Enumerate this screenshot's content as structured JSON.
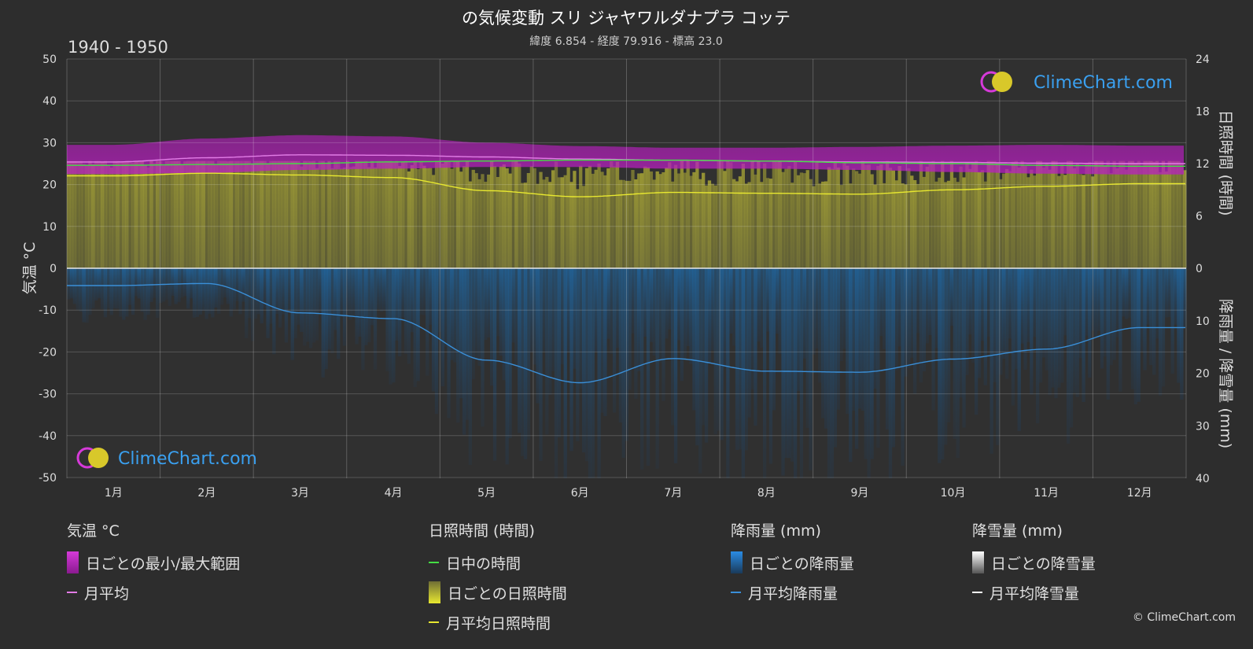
{
  "chart_data": {
    "type": "line",
    "title": "の気候変動 スリ ジャヤワルダナプラ コッテ",
    "subtitle": "緯度 6.854 - 経度 79.916 - 標高 23.0",
    "period": "1940 - 1950",
    "months": [
      "1月",
      "2月",
      "3月",
      "4月",
      "5月",
      "6月",
      "7月",
      "8月",
      "9月",
      "10月",
      "11月",
      "12月"
    ],
    "left_axis": {
      "label": "気温 °C",
      "min": -50,
      "max": 50,
      "ticks": [
        50,
        40,
        30,
        20,
        10,
        0,
        -10,
        -20,
        -30,
        -40,
        -50
      ]
    },
    "right_axis_top": {
      "label": "日照時間 (時間)",
      "min": 0,
      "max": 24,
      "ticks": [
        24,
        18,
        12,
        6,
        0
      ]
    },
    "right_axis_bottom": {
      "label": "降雨量 / 降雪量 (mm)",
      "min": 0,
      "max": 40,
      "ticks": [
        0,
        10,
        20,
        30,
        40
      ]
    },
    "series": [
      {
        "name": "月平均",
        "axis": "temp",
        "color": "#e27ce6",
        "values": [
          25.4,
          26.4,
          27.1,
          27.0,
          26.6,
          26.1,
          25.8,
          25.6,
          25.4,
          25.3,
          25.1,
          25.0
        ]
      },
      {
        "name": "日中の時間",
        "axis": "sun",
        "color": "#44dd44",
        "values": [
          11.8,
          11.9,
          12.0,
          12.2,
          12.3,
          12.4,
          12.4,
          12.3,
          12.1,
          12.0,
          11.8,
          11.7
        ]
      },
      {
        "name": "月平均日照時間",
        "axis": "sun",
        "color": "#e8e830",
        "values": [
          10.6,
          10.9,
          10.7,
          10.4,
          8.9,
          8.2,
          8.7,
          8.6,
          8.5,
          9.0,
          9.4,
          9.7
        ]
      },
      {
        "name": "月平均降雨量",
        "axis": "rain",
        "color": "#3a8fd8",
        "values": [
          3.3,
          2.9,
          8.5,
          9.6,
          17.5,
          21.8,
          17.2,
          19.6,
          19.8,
          17.3,
          15.4,
          11.3
        ]
      }
    ],
    "temp_range": {
      "min": [
        22.5,
        22.8,
        23.5,
        23.8,
        24.2,
        24.2,
        23.8,
        23.8,
        23.5,
        23.0,
        22.6,
        22.4
      ],
      "max": [
        29.5,
        31.0,
        31.8,
        31.5,
        30.0,
        29.2,
        28.8,
        28.8,
        29.0,
        29.3,
        29.5,
        29.3
      ]
    }
  },
  "legend": {
    "temp": {
      "header": "気温 °C",
      "items": [
        "日ごとの最小/最大範囲",
        "月平均"
      ]
    },
    "sun": {
      "header": "日照時間 (時間)",
      "items": [
        "日中の時間",
        "日ごとの日照時間",
        "月平均日照時間"
      ]
    },
    "rain": {
      "header": "降雨量 (mm)",
      "items": [
        "日ごとの降雨量",
        "月平均降雨量"
      ]
    },
    "snow": {
      "header": "降雪量 (mm)",
      "items": [
        "日ごとの降雪量",
        "月平均降雪量"
      ]
    }
  },
  "brand": {
    "name": "ClimeChart.com",
    "copyright": "© ClimeChart.com"
  },
  "colors": {
    "background": "#2d2d2d",
    "temp_range": "#c21fc6",
    "sunshine": "#a8a832",
    "rain": "#1f6aa8",
    "brand": "#3aa0f0"
  }
}
